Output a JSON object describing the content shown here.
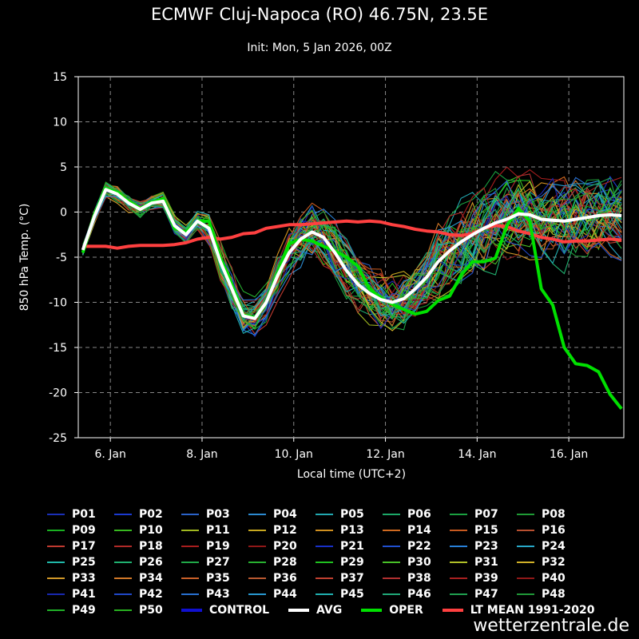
{
  "title": "ECMWF Cluj-Napoca (RO) 46.75N, 23.5E",
  "subtitle": "Init: Mon, 5 Jan 2026, 00Z",
  "watermark": "wetterzentrale.de",
  "chart_data": {
    "type": "line",
    "xlabel": "Local time (UTC+2)",
    "ylabel": "850 hPa Temp. (°C)",
    "xlim": [
      5.3,
      17.2
    ],
    "ylim": [
      -25,
      15
    ],
    "yticks": [
      15,
      10,
      5,
      0,
      -5,
      -10,
      -15,
      -20,
      -25
    ],
    "xticks": [
      {
        "value": 6,
        "label": "6. Jan"
      },
      {
        "value": 8,
        "label": "8. Jan"
      },
      {
        "value": 10,
        "label": "10. Jan"
      },
      {
        "value": 12,
        "label": "12. Jan"
      },
      {
        "value": 14,
        "label": "14. Jan"
      },
      {
        "value": 16,
        "label": "16. Jan"
      }
    ],
    "grid": true,
    "x": [
      5.4,
      5.65,
      5.9,
      6.15,
      6.4,
      6.65,
      6.9,
      7.15,
      7.4,
      7.65,
      7.9,
      8.15,
      8.4,
      8.65,
      8.9,
      9.15,
      9.4,
      9.65,
      9.9,
      10.15,
      10.4,
      10.65,
      10.9,
      11.15,
      11.4,
      11.65,
      11.9,
      12.15,
      12.4,
      12.65,
      12.9,
      13.15,
      13.4,
      13.65,
      13.9,
      14.15,
      14.4,
      14.65,
      14.9,
      15.15,
      15.4,
      15.65,
      15.9,
      16.15,
      16.4,
      16.65,
      16.9,
      17.15
    ],
    "series": [
      {
        "name": "AVG",
        "color": "#ffffff",
        "width": 4,
        "values": [
          -4.2,
          -0.5,
          2.5,
          2.0,
          1.0,
          0.3,
          1.0,
          1.2,
          -1.5,
          -2.5,
          -1.0,
          -1.8,
          -5.5,
          -8.5,
          -11.5,
          -11.8,
          -10.0,
          -7.0,
          -4.5,
          -3.0,
          -2.2,
          -2.8,
          -4.5,
          -6.5,
          -8.0,
          -9.0,
          -9.7,
          -10.0,
          -9.6,
          -8.5,
          -7.2,
          -5.5,
          -4.3,
          -3.3,
          -2.5,
          -1.8,
          -1.2,
          -0.8,
          -0.2,
          -0.3,
          -0.8,
          -0.9,
          -1.0,
          -0.8,
          -0.6,
          -0.4,
          -0.3,
          -0.4
        ]
      },
      {
        "name": "OPER",
        "color": "#00e000",
        "width": 4,
        "values": [
          -4.5,
          -0.3,
          2.6,
          2.2,
          1.2,
          0.4,
          1.1,
          1.5,
          -1.8,
          -2.2,
          -1.0,
          -1.0,
          -5.0,
          -8.0,
          -11.4,
          -11.7,
          -10.0,
          -6.8,
          -3.5,
          -3.0,
          -3.2,
          -3.8,
          -4.3,
          -5.0,
          -6.0,
          -8.5,
          -9.5,
          -10.2,
          -10.8,
          -11.3,
          -11.0,
          -9.8,
          -9.3,
          -7.0,
          -5.5,
          -5.5,
          -5.1,
          -1.5,
          0.4,
          -1.0,
          -8.5,
          -10.3,
          -15.0,
          -16.8,
          -17.0,
          -17.7,
          -20.2,
          -21.8
        ]
      },
      {
        "name": "LT MEAN 1991-2020",
        "color": "#ff4040",
        "width": 4,
        "values": [
          -3.8,
          -3.8,
          -3.8,
          -4.0,
          -3.8,
          -3.7,
          -3.7,
          -3.7,
          -3.6,
          -3.4,
          -3.0,
          -2.8,
          -3.0,
          -2.8,
          -2.4,
          -2.3,
          -1.8,
          -1.6,
          -1.4,
          -1.4,
          -1.3,
          -1.2,
          -1.1,
          -1.0,
          -1.1,
          -1.0,
          -1.1,
          -1.4,
          -1.6,
          -1.9,
          -2.1,
          -2.2,
          -2.5,
          -2.6,
          -2.4,
          -1.8,
          -1.5,
          -1.6,
          -2.1,
          -2.4,
          -2.8,
          -3.0,
          -3.3,
          -3.2,
          -3.2,
          -3.1,
          -3.0,
          -3.1
        ]
      }
    ],
    "legend_members": [
      {
        "name": "P01",
        "color": "#1a2fb8"
      },
      {
        "name": "P02",
        "color": "#1b3ad0"
      },
      {
        "name": "P03",
        "color": "#2a62c8"
      },
      {
        "name": "P04",
        "color": "#2c8ad0"
      },
      {
        "name": "P05",
        "color": "#22a8b0"
      },
      {
        "name": "P06",
        "color": "#1ca868"
      },
      {
        "name": "P07",
        "color": "#1aa040"
      },
      {
        "name": "P08",
        "color": "#1f9a35"
      },
      {
        "name": "P09",
        "color": "#1ab021"
      },
      {
        "name": "P10",
        "color": "#38b820"
      },
      {
        "name": "P11",
        "color": "#a0b820"
      },
      {
        "name": "P12",
        "color": "#c8a820"
      },
      {
        "name": "P13",
        "color": "#d09020"
      },
      {
        "name": "P14",
        "color": "#d06a20"
      },
      {
        "name": "P15",
        "color": "#c85a20"
      },
      {
        "name": "P16",
        "color": "#b85030"
      },
      {
        "name": "P17",
        "color": "#c03a30"
      },
      {
        "name": "P18",
        "color": "#b02a28"
      },
      {
        "name": "P19",
        "color": "#a81e1e"
      },
      {
        "name": "P20",
        "color": "#901818"
      },
      {
        "name": "P21",
        "color": "#1830c8"
      },
      {
        "name": "P22",
        "color": "#2050d0"
      },
      {
        "name": "P23",
        "color": "#2880d8"
      },
      {
        "name": "P24",
        "color": "#28a8c8"
      },
      {
        "name": "P25",
        "color": "#20b8a8"
      },
      {
        "name": "P26",
        "color": "#20b070"
      },
      {
        "name": "P27",
        "color": "#20a848"
      },
      {
        "name": "P28",
        "color": "#28b030"
      },
      {
        "name": "P29",
        "color": "#20c020"
      },
      {
        "name": "P30",
        "color": "#48c028"
      },
      {
        "name": "P31",
        "color": "#b0c028"
      },
      {
        "name": "P32",
        "color": "#d0b028"
      },
      {
        "name": "P33",
        "color": "#d09828"
      },
      {
        "name": "P34",
        "color": "#d07828"
      },
      {
        "name": "P35",
        "color": "#c86028"
      },
      {
        "name": "P36",
        "color": "#b85830"
      },
      {
        "name": "P37",
        "color": "#c04030"
      },
      {
        "name": "P38",
        "color": "#b03030"
      },
      {
        "name": "P39",
        "color": "#a82020"
      },
      {
        "name": "P40",
        "color": "#901818"
      },
      {
        "name": "P41",
        "color": "#1828b0"
      },
      {
        "name": "P42",
        "color": "#2048c8"
      },
      {
        "name": "P43",
        "color": "#2870d0"
      },
      {
        "name": "P44",
        "color": "#2898d0"
      },
      {
        "name": "P45",
        "color": "#20b0b0"
      },
      {
        "name": "P46",
        "color": "#20a878"
      },
      {
        "name": "P47",
        "color": "#20a050"
      },
      {
        "name": "P48",
        "color": "#209838"
      },
      {
        "name": "P49",
        "color": "#20b028"
      },
      {
        "name": "P50",
        "color": "#28b020"
      }
    ],
    "legend_main": [
      {
        "name": "CONTROL",
        "color": "#1010d0"
      },
      {
        "name": "AVG",
        "color": "#ffffff"
      },
      {
        "name": "OPER",
        "color": "#00e000"
      },
      {
        "name": "LT MEAN 1991-2020",
        "color": "#ff4040"
      }
    ]
  }
}
